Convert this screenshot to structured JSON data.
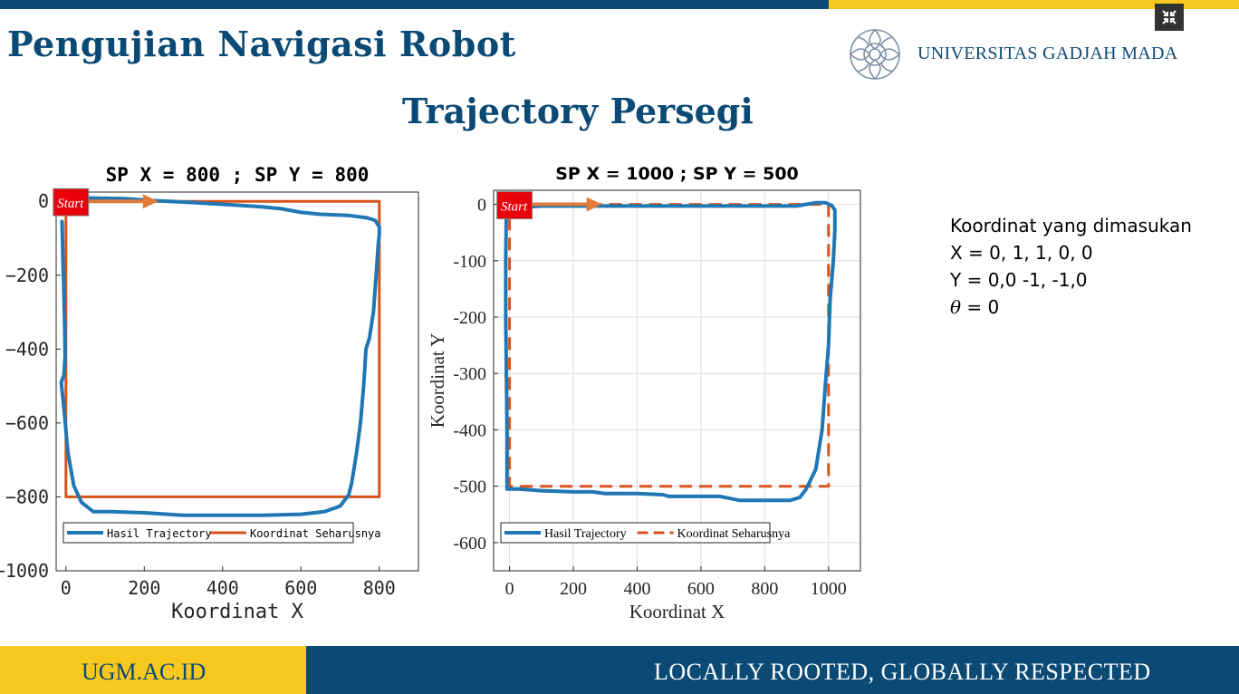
{
  "slide": {
    "title": "Pengujian Navigasi Robot",
    "subtitle": "Trajectory Persegi",
    "university": "UNIVERSITAS GADJAH MADA",
    "footer_left": "UGM.AC.ID",
    "footer_right": "LOCALLY ROOTED, GLOBALLY RESPECTED",
    "colors": {
      "primary": "#0b4a75",
      "accent": "#f7c81e"
    },
    "fullscreen_icon": "fullscreen-exit-icon"
  },
  "info": {
    "heading": "Koordinat yang dimasukan",
    "x_line": "X = 0, 1, 1, 0, 0",
    "y_line": "Y = 0,0 -1, -1,0",
    "theta_symbol": "θ",
    "theta_rest": " = 0"
  },
  "chart_data": [
    {
      "type": "line",
      "title": "SP X = 800 ; SP Y = 800",
      "xlabel": "Koordinat X",
      "ylabel": "",
      "xlim": [
        -25,
        900
      ],
      "ylim": [
        -1000,
        25
      ],
      "xticks": [
        0,
        200,
        400,
        600,
        800
      ],
      "yticks": [
        0,
        -200,
        -400,
        -600,
        -800,
        -1000
      ],
      "xticklabels": [
        "0",
        "200",
        "400",
        "600",
        "800"
      ],
      "yticklabels": [
        "0",
        "−200",
        "−400",
        "−600",
        "−800",
        "−1000"
      ],
      "grid": false,
      "legend_position": "bottom-left",
      "start_label": "Start",
      "series": [
        {
          "name": "Hasil Trajectory",
          "color": "#1f77b4",
          "style": "solid",
          "x": [
            -10,
            -8,
            -5,
            -3,
            -2,
            -5,
            -12,
            -5,
            5,
            20,
            40,
            70,
            120,
            200,
            300,
            400,
            500,
            600,
            660,
            700,
            722,
            730,
            742,
            752,
            760,
            766,
            775,
            785,
            792,
            797,
            800,
            800,
            790,
            770,
            720,
            650,
            600,
            550,
            500,
            400,
            300,
            220,
            150,
            100,
            60,
            30,
            10,
            0,
            -5
          ],
          "y": [
            -55,
            -150,
            -250,
            -350,
            -420,
            -470,
            -490,
            -560,
            -680,
            -770,
            -815,
            -840,
            -840,
            -843,
            -850,
            -850,
            -850,
            -847,
            -840,
            -825,
            -795,
            -760,
            -680,
            -600,
            -500,
            -400,
            -370,
            -300,
            -200,
            -120,
            -90,
            -70,
            -52,
            -45,
            -38,
            -35,
            -30,
            -20,
            -15,
            -8,
            -2,
            2,
            7,
            8,
            9,
            10,
            10,
            8,
            5
          ]
        },
        {
          "name": "Koordinat Seharusnya",
          "color": "#d95319",
          "style": "solid",
          "x": [
            0,
            800,
            800,
            0,
            0
          ],
          "y": [
            0,
            0,
            -800,
            -800,
            0
          ]
        }
      ]
    },
    {
      "type": "line",
      "title": "SP X = 1000 ; SP Y = 500",
      "xlabel": "Koordinat X",
      "ylabel": "Koordinat Y",
      "xlim": [
        -50,
        1100
      ],
      "ylim": [
        -650,
        25
      ],
      "xticks": [
        0,
        200,
        400,
        600,
        800,
        1000
      ],
      "yticks": [
        0,
        -100,
        -200,
        -300,
        -400,
        -500,
        -600
      ],
      "xticklabels": [
        "0",
        "200",
        "400",
        "600",
        "800",
        "1000"
      ],
      "yticklabels": [
        "0",
        "-100",
        "-200",
        "-300",
        "-400",
        "-500",
        "-600"
      ],
      "grid": true,
      "legend_position": "bottom-left",
      "start_label": "Start",
      "series": [
        {
          "name": "Hasil Trajectory",
          "color": "#1f77b4",
          "style": "solid",
          "x": [
            -10,
            -12,
            -12,
            -10,
            -8,
            -8,
            30,
            100,
            200,
            260,
            300,
            400,
            480,
            500,
            600,
            660,
            720,
            800,
            880,
            910,
            930,
            960,
            980,
            990,
            1000,
            1005,
            1015,
            1020,
            1020,
            1010,
            990,
            960,
            900,
            800,
            700,
            600,
            500,
            400,
            300,
            200,
            100,
            50,
            20,
            0,
            -10
          ],
          "y": [
            -5,
            -100,
            -200,
            -300,
            -400,
            -505,
            -505,
            -508,
            -510,
            -510,
            -513,
            -513,
            -515,
            -518,
            -518,
            -518,
            -525,
            -525,
            -525,
            -520,
            -505,
            -470,
            -400,
            -320,
            -250,
            -170,
            -100,
            -45,
            -10,
            -2,
            3,
            3,
            -3,
            -3,
            -3,
            -3,
            -3,
            -3,
            -3,
            -3,
            -3,
            -5,
            -3,
            0,
            -2
          ]
        },
        {
          "name": "Koordinat Seharusnya",
          "color": "#d95319",
          "style": "dashed",
          "x": [
            0,
            1000,
            1000,
            0,
            0
          ],
          "y": [
            0,
            0,
            -500,
            -500,
            0
          ]
        }
      ]
    }
  ]
}
